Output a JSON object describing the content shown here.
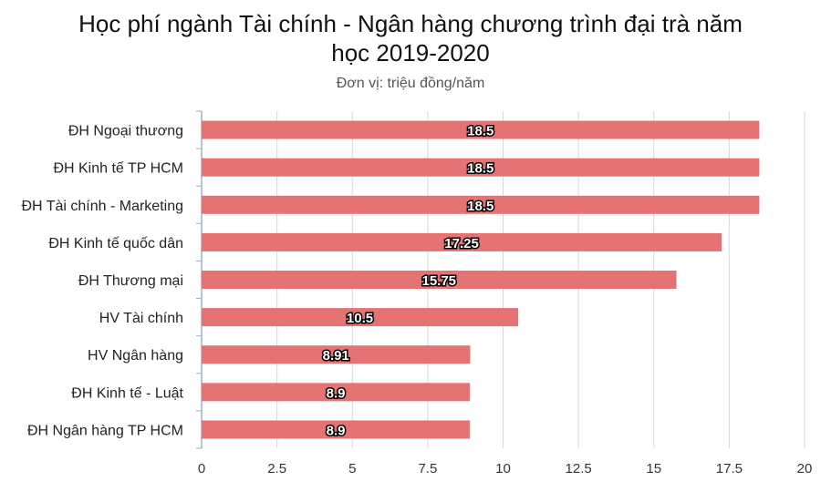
{
  "chart_data": {
    "type": "bar",
    "orientation": "horizontal",
    "title": "Học phí ngành Tài chính - Ngân hàng chương trình đại trà năm học 2019-2020",
    "title_lines": [
      "Học phí ngành Tài chính - Ngân hàng chương trình đại trà năm",
      "học 2019-2020"
    ],
    "subtitle": "Đơn vị: triệu đồng/năm",
    "categories": [
      "ĐH Ngoại thương",
      "ĐH Kinh tế TP HCM",
      "ĐH Tài chính - Marketing",
      "ĐH Kinh tế quốc dân",
      "ĐH Thương mại",
      "HV Tài chính",
      "HV Ngân hàng",
      "ĐH Kinh tế - Luật",
      "ĐH Ngân hàng TP HCM"
    ],
    "values": [
      18.5,
      18.5,
      18.5,
      17.25,
      15.75,
      10.5,
      8.91,
      8.9,
      8.9
    ],
    "value_labels": [
      "18.5",
      "18.5",
      "18.5",
      "17.25",
      "15.75",
      "10.5",
      "8.91",
      "8.9",
      "8.9"
    ],
    "xlim": [
      0,
      20
    ],
    "ticks": [
      "0",
      "2.5",
      "5",
      "7.5",
      "10",
      "12.5",
      "15",
      "17.5",
      "20"
    ],
    "grid": true,
    "legend": "none",
    "bar_color": "#e57373",
    "grid_color": "#d9d9d9"
  }
}
